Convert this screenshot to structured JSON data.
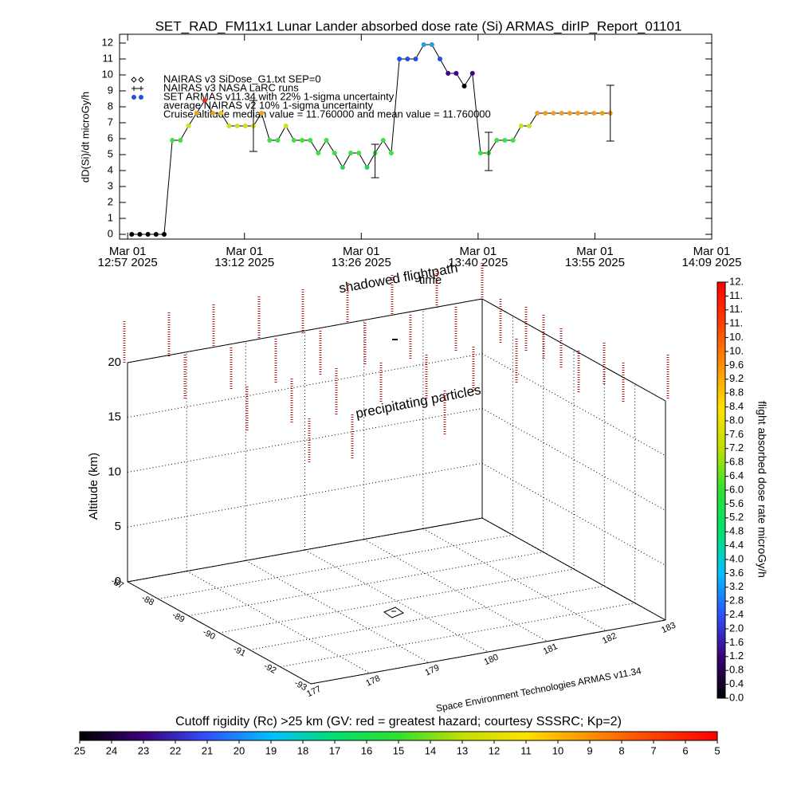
{
  "chart_data": [
    {
      "type": "line",
      "title": "SET_RAD_FM11x1  Lunar Lander absorbed dose rate (Si) ARMAS_dirIP_Report_01101",
      "y_label": "dD(Si)/dt microGy/h",
      "x_label": "time",
      "legend": [
        "NAIRAS v3 SiDose_G1.txt SEP=0",
        "NAIRAS v3 NASA LaRC runs",
        "SET ARMAS v11.34 with 22% 1-sigma uncertainty",
        "average NAIRAS v2 10% 1-sigma uncertainty"
      ],
      "annotation": "Cruise altitude median value = 11.760000 and mean value = 11.760000",
      "xlim": [
        -1,
        72
      ],
      "xticks": [
        {
          "value": 0,
          "label": "Mar 01\n12:57 2025"
        },
        {
          "value": 14.4,
          "label": "Mar 01\n13:12 2025"
        },
        {
          "value": 28.8,
          "label": "Mar 01\n13:26 2025"
        },
        {
          "value": 43.2,
          "label": "Mar 01\n13:40 2025"
        },
        {
          "value": 57.6,
          "label": "Mar 01\n13:55 2025"
        },
        {
          "value": 72,
          "label": "Mar 01\n14:09 2025"
        }
      ],
      "ylim": [
        -0.3,
        12.55
      ],
      "yticks": [
        0,
        1,
        2,
        3,
        4,
        5,
        6,
        7,
        8,
        9,
        10,
        11,
        12
      ],
      "series": [
        {
          "x": [
            0.5,
            1.5,
            2.5,
            3.5,
            4.5,
            5.5,
            6.5,
            7.5,
            8.5,
            9.5,
            10.5,
            11.5,
            12.5,
            13.5,
            14.5,
            15.5,
            16.5,
            17.5,
            18.5,
            19.5,
            20.5,
            21.5,
            22.5,
            23.5,
            24.5,
            25.5,
            26.5,
            27.5,
            28.5,
            29.5,
            30.5,
            31.5,
            32.5,
            33.5,
            34.5,
            35.5,
            36.5,
            37.5,
            38.5,
            39.5,
            40.5,
            41.5,
            42.5,
            43.5,
            44.5,
            45.5,
            46.5,
            47.5,
            48.5,
            49.5,
            50.5,
            51.5,
            52.5,
            53.5,
            54.5,
            55.5,
            56.5,
            57.5,
            58.5,
            59.5
          ],
          "values": [
            0,
            0,
            0,
            0,
            0,
            5.9,
            5.9,
            6.8,
            7.6,
            8.4,
            7.6,
            7.6,
            6.8,
            6.8,
            6.8,
            6.8,
            7.6,
            5.9,
            5.9,
            6.8,
            5.9,
            5.9,
            5.9,
            5.1,
            5.9,
            5.1,
            4.2,
            5.1,
            5.1,
            4.2,
            5.1,
            5.9,
            5.1,
            11,
            11,
            11,
            11.9,
            11.9,
            11,
            10.1,
            10.1,
            9.3,
            10.1,
            5.1,
            5.1,
            5.9,
            5.9,
            5.9,
            6.8,
            6.8,
            7.6,
            7.6,
            7.6,
            7.6,
            7.6,
            7.6,
            7.6,
            7.6,
            7.6,
            7.6
          ],
          "colors": [
            "#000000",
            "#000000",
            "#000000",
            "#000000",
            "#000000",
            "#40e040",
            "#40e040",
            "#d0e020",
            "#f0a020",
            "#e03020",
            "#f0a020",
            "#e8c020",
            "#d0e020",
            "#d0e020",
            "#d0e020",
            "#d0e020",
            "#f0a020",
            "#40e040",
            "#40e040",
            "#d0e020",
            "#40e040",
            "#40e040",
            "#40e040",
            "#40e040",
            "#40e040",
            "#40e040",
            "#30d060",
            "#40e040",
            "#40e040",
            "#30d060",
            "#40e040",
            "#40e040",
            "#40e040",
            "#2050e0",
            "#2050e0",
            "#2050e0",
            "#20a0e0",
            "#20a0e0",
            "#2050e0",
            "#400090",
            "#400090",
            "#000000",
            "#400090",
            "#40e040",
            "#40e040",
            "#40e040",
            "#40e040",
            "#40e040",
            "#d0e020",
            "#d0e020",
            "#f0a020",
            "#f0a020",
            "#f0a020",
            "#f0a020",
            "#f0a020",
            "#f0a020",
            "#f0a020",
            "#f0a020",
            "#f0a020",
            "#f0a020"
          ],
          "line_color": "#000000"
        },
        {
          "x": [
            15.5,
            30.5,
            44.5,
            59.5
          ],
          "values": [
            6.8,
            4.6,
            5.2,
            7.6
          ],
          "errors": [
            1.6,
            1.05,
            1.2,
            1.75
          ],
          "color": "#000000"
        }
      ]
    },
    {
      "type": "3d",
      "title": "shadowed flightpath",
      "annotation": "precipitating particles",
      "z_label": "Altitude (km)",
      "credit": "Space Environment Technologies ARMAS v11.34",
      "zlim": [
        0,
        20
      ],
      "zticks": [
        0,
        5,
        10,
        15,
        20
      ],
      "ylim": [
        -87,
        -93
      ],
      "yticks": [
        -87,
        -88,
        -89,
        -90,
        -91,
        -92,
        -93
      ],
      "xlim": [
        177,
        183
      ],
      "xticks": [
        177,
        178,
        179,
        180,
        181,
        182,
        183
      ]
    },
    {
      "type": "colorbar",
      "label": "flight absorbed dose rate microGy/h",
      "lim": [
        0,
        12
      ],
      "colors": [
        "#000000",
        "#3c0078",
        "#3050ff",
        "#00c0ff",
        "#00e070",
        "#30e030",
        "#c0e000",
        "#ffe000",
        "#ff9000",
        "#ff4000",
        "#ff0000"
      ],
      "ticks": [
        {
          "value": 0,
          "label": "0.0"
        },
        {
          "value": 0.4,
          "label": "0.4"
        },
        {
          "value": 0.8,
          "label": "0.8"
        },
        {
          "value": 1.2,
          "label": "1.2"
        },
        {
          "value": 1.6,
          "label": "1.6"
        },
        {
          "value": 2,
          "label": "2.0"
        },
        {
          "value": 2.4,
          "label": "2.4"
        },
        {
          "value": 2.8,
          "label": "2.8"
        },
        {
          "value": 3.2,
          "label": "3.2"
        },
        {
          "value": 3.6,
          "label": "3.6"
        },
        {
          "value": 4,
          "label": "4.0"
        },
        {
          "value": 4.4,
          "label": "4.4"
        },
        {
          "value": 4.8,
          "label": "4.8"
        },
        {
          "value": 5.2,
          "label": "5.2"
        },
        {
          "value": 5.6,
          "label": "5.6"
        },
        {
          "value": 6,
          "label": "6.0"
        },
        {
          "value": 6.4,
          "label": "6.4"
        },
        {
          "value": 6.8,
          "label": "6.8"
        },
        {
          "value": 7.2,
          "label": "7.2"
        },
        {
          "value": 7.6,
          "label": "7.6"
        },
        {
          "value": 8,
          "label": "8.0"
        },
        {
          "value": 8.4,
          "label": "8.4"
        },
        {
          "value": 8.8,
          "label": "8.8"
        },
        {
          "value": 9.2,
          "label": "9.2"
        },
        {
          "value": 9.6,
          "label": "9.6"
        },
        {
          "value": 10,
          "label": "10."
        },
        {
          "value": 10.4,
          "label": "10."
        },
        {
          "value": 10.8,
          "label": "11."
        },
        {
          "value": 11.2,
          "label": "11."
        },
        {
          "value": 11.6,
          "label": "11."
        },
        {
          "value": 12,
          "label": "12."
        }
      ]
    },
    {
      "type": "colorbar",
      "title": "Cutoff rigidity (Rc) >25 km (GV: red = greatest hazard; courtesy SSSRC; Kp=2)",
      "lim": [
        25,
        5
      ],
      "colors": [
        "#000000",
        "#3c0078",
        "#3050ff",
        "#00c0ff",
        "#00e070",
        "#30e030",
        "#c0e000",
        "#ffe000",
        "#ff9000",
        "#ff4000",
        "#ff0000"
      ],
      "ticks": [
        25,
        24,
        23,
        22,
        21,
        20,
        19,
        18,
        17,
        16,
        15,
        14,
        13,
        12,
        11,
        10,
        9,
        8,
        7,
        6,
        5
      ]
    }
  ]
}
